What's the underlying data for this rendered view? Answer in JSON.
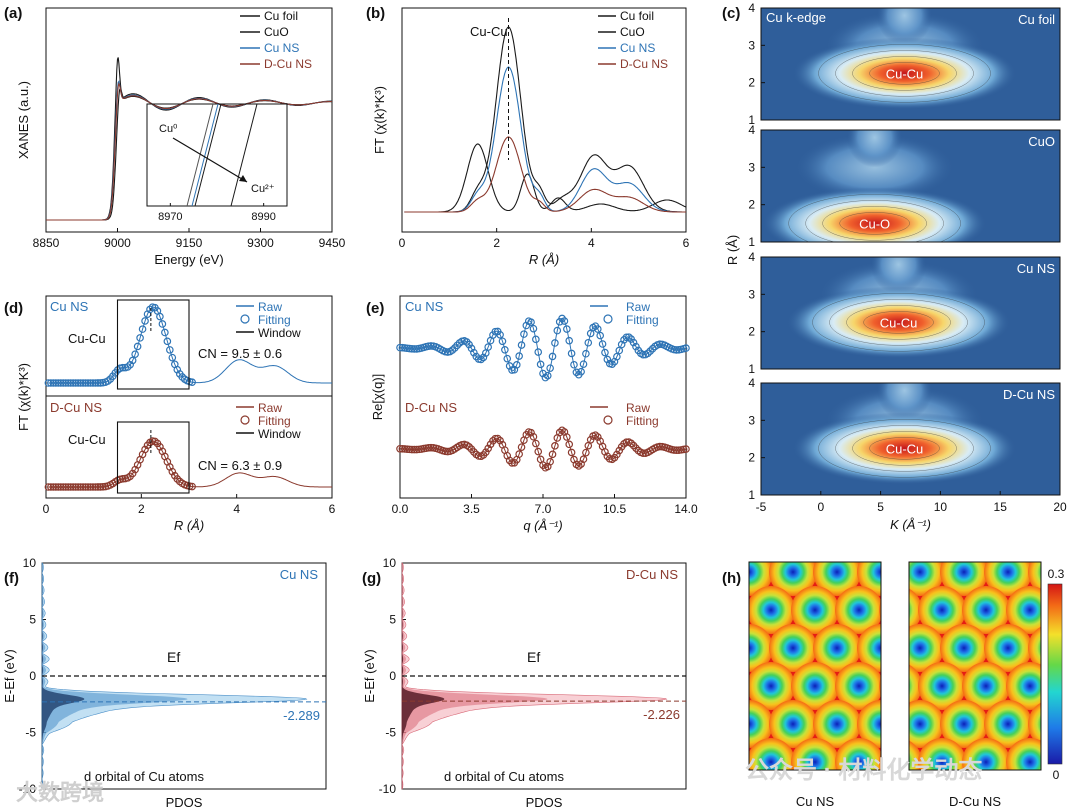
{
  "colors": {
    "black": "#1a1a1a",
    "gray": "#555555",
    "blue": "#2e74b5",
    "lightblue": "#4aa3d8",
    "red": "#8b3a2e",
    "pink": "#e58a94",
    "darkred": "#5a1a22"
  },
  "panels": {
    "a": "(a)",
    "b": "(b)",
    "c": "(c)",
    "d": "(d)",
    "e": "(e)",
    "f": "(f)",
    "g": "(g)",
    "h": "(h)"
  },
  "chart_data": [
    {
      "id": "a",
      "type": "line",
      "xlabel": "Energy (eV)",
      "ylabel": "XANES (a.u.)",
      "xlim": [
        8850,
        9450
      ],
      "xticks": [
        8850,
        9000,
        9150,
        9300,
        9450
      ],
      "legend": [
        "Cu foil",
        "CuO",
        "Cu NS",
        "D-Cu NS"
      ],
      "legend_position": "top-right",
      "inset": {
        "xticks": [
          8970,
          8990
        ],
        "annotations": [
          "Cu⁰",
          "Cu²⁺"
        ]
      }
    },
    {
      "id": "b",
      "type": "line",
      "xlabel": "R (Å)",
      "ylabel": "FT (χ(k)*K³)",
      "xlim": [
        0,
        6
      ],
      "xticks": [
        0,
        2,
        4,
        6
      ],
      "legend": [
        "Cu foil",
        "CuO",
        "Cu NS",
        "D-Cu NS"
      ],
      "legend_position": "top-right",
      "annotation": "Cu-Cu",
      "peak_R": 2.25
    },
    {
      "id": "c",
      "type": "heatmap",
      "xlabel": "K (Å⁻¹)",
      "ylabel": "R (Å)",
      "xlim": [
        -5,
        20
      ],
      "ylim": [
        1,
        4
      ],
      "xticks": [
        -5,
        0,
        5,
        10,
        15,
        20
      ],
      "yticks": [
        1,
        2,
        3,
        4
      ],
      "edge_label": "Cu k-edge",
      "maps": [
        {
          "sample": "Cu foil",
          "peak_label": "Cu-Cu",
          "k": 7,
          "R": 2.25
        },
        {
          "sample": "CuO",
          "peak_label": "Cu-O",
          "k": 4.5,
          "R": 1.5
        },
        {
          "sample": "Cu NS",
          "peak_label": "Cu-Cu",
          "k": 6.5,
          "R": 2.25
        },
        {
          "sample": "D-Cu NS",
          "peak_label": "Cu-Cu",
          "k": 7,
          "R": 2.25
        }
      ]
    },
    {
      "id": "d",
      "type": "line",
      "xlabel": "R (Å)",
      "ylabel": "FT (χ(k)*K³)",
      "xlim": [
        0,
        6
      ],
      "xticks": [
        0,
        2,
        4,
        6
      ],
      "window": [
        1.5,
        3.0
      ],
      "top": {
        "sample": "Cu NS",
        "label": "Cu-Cu",
        "cn": "CN = 9.5 ± 0.6",
        "legend": [
          "Raw",
          "Fitting",
          "Window"
        ]
      },
      "bottom": {
        "sample": "D-Cu NS",
        "label": "Cu-Cu",
        "cn": "CN = 6.3 ± 0.9",
        "legend": [
          "Raw",
          "Fitting",
          "Window"
        ]
      }
    },
    {
      "id": "e",
      "type": "line",
      "xlabel": "q (Å⁻¹)",
      "ylabel": "Re[χ(q)]",
      "xlim": [
        0,
        14
      ],
      "xticks": [
        "0.0",
        "3.5",
        "7.0",
        "10.5",
        "14.0"
      ],
      "top": {
        "sample": "Cu NS",
        "legend": [
          "Raw",
          "Fitting"
        ]
      },
      "bottom": {
        "sample": "D-Cu NS",
        "legend": [
          "Raw",
          "Fitting"
        ]
      }
    },
    {
      "id": "f",
      "type": "area",
      "xlabel": "PDOS",
      "ylabel": "E-Ef (eV)",
      "ylim": [
        -10,
        10
      ],
      "yticks": [
        -10,
        -5,
        0,
        5,
        10
      ],
      "sample": "Cu NS",
      "fermi_label": "Ef",
      "d_band_center": "-2.289",
      "d_band_center_value": -2.289,
      "caption": "d orbital of Cu atoms"
    },
    {
      "id": "g",
      "type": "area",
      "xlabel": "PDOS",
      "ylabel": "E-Ef (eV)",
      "ylim": [
        -10,
        10
      ],
      "yticks": [
        -10,
        -5,
        0,
        5,
        10
      ],
      "sample": "D-Cu NS",
      "fermi_label": "Ef",
      "d_band_center": "-2.226",
      "d_band_center_value": -2.226,
      "caption": "d orbital of Cu atoms"
    },
    {
      "id": "h",
      "type": "heatmap",
      "maps": [
        "Cu NS",
        "D-Cu NS"
      ],
      "colorbar": [
        "0.3",
        "0"
      ]
    }
  ],
  "watermark": {
    "left": "大数跨境",
    "right": "公众号 · 材料化学动态"
  }
}
